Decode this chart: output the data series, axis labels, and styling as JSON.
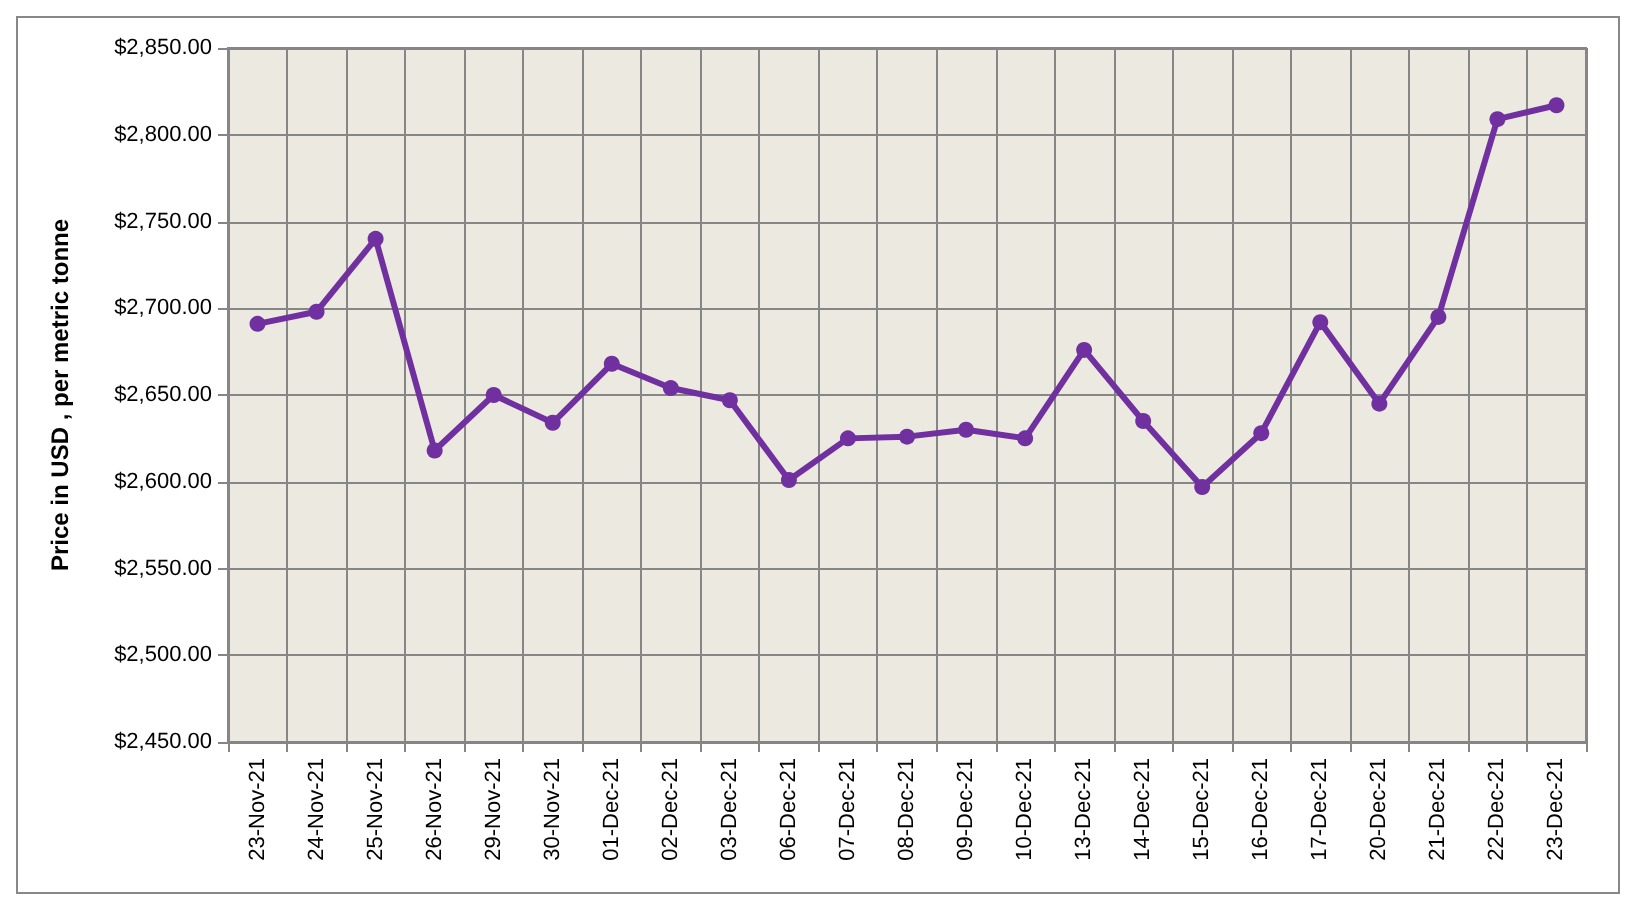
{
  "chart_data": {
    "type": "line",
    "ylabel": "Price in USD , per metric tonne",
    "categories": [
      "23-Nov-21",
      "24-Nov-21",
      "25-Nov-21",
      "26-Nov-21",
      "29-Nov-21",
      "30-Nov-21",
      "01-Dec-21",
      "02-Dec-21",
      "03-Dec-21",
      "06-Dec-21",
      "07-Dec-21",
      "08-Dec-21",
      "09-Dec-21",
      "10-Dec-21",
      "13-Dec-21",
      "14-Dec-21",
      "15-Dec-21",
      "16-Dec-21",
      "17-Dec-21",
      "20-Dec-21",
      "21-Dec-21",
      "22-Dec-21",
      "23-Dec-21"
    ],
    "series": [
      {
        "color": "#7030a0",
        "values": [
          2691,
          2698,
          2740,
          2618,
          2650,
          2634,
          2668,
          2654,
          2647,
          2601,
          2625,
          2626,
          2630,
          2625,
          2676,
          2635,
          2597,
          2628,
          2692,
          2645,
          2695,
          2809,
          2817
        ]
      }
    ],
    "ylim": [
      2450,
      2850
    ],
    "yticks": [
      {
        "value": 2450,
        "label": "$2,450.00"
      },
      {
        "value": 2500,
        "label": "$2,500.00"
      },
      {
        "value": 2550,
        "label": "$2,550.00"
      },
      {
        "value": 2600,
        "label": "$2,600.00"
      },
      {
        "value": 2650,
        "label": "$2,650.00"
      },
      {
        "value": 2700,
        "label": "$2,700.00"
      },
      {
        "value": 2750,
        "label": "$2,750.00"
      },
      {
        "value": 2800,
        "label": "$2,800.00"
      },
      {
        "value": 2850,
        "label": "$2,850.00"
      }
    ],
    "grid": true,
    "marker": "circle",
    "line_style": "solid"
  }
}
